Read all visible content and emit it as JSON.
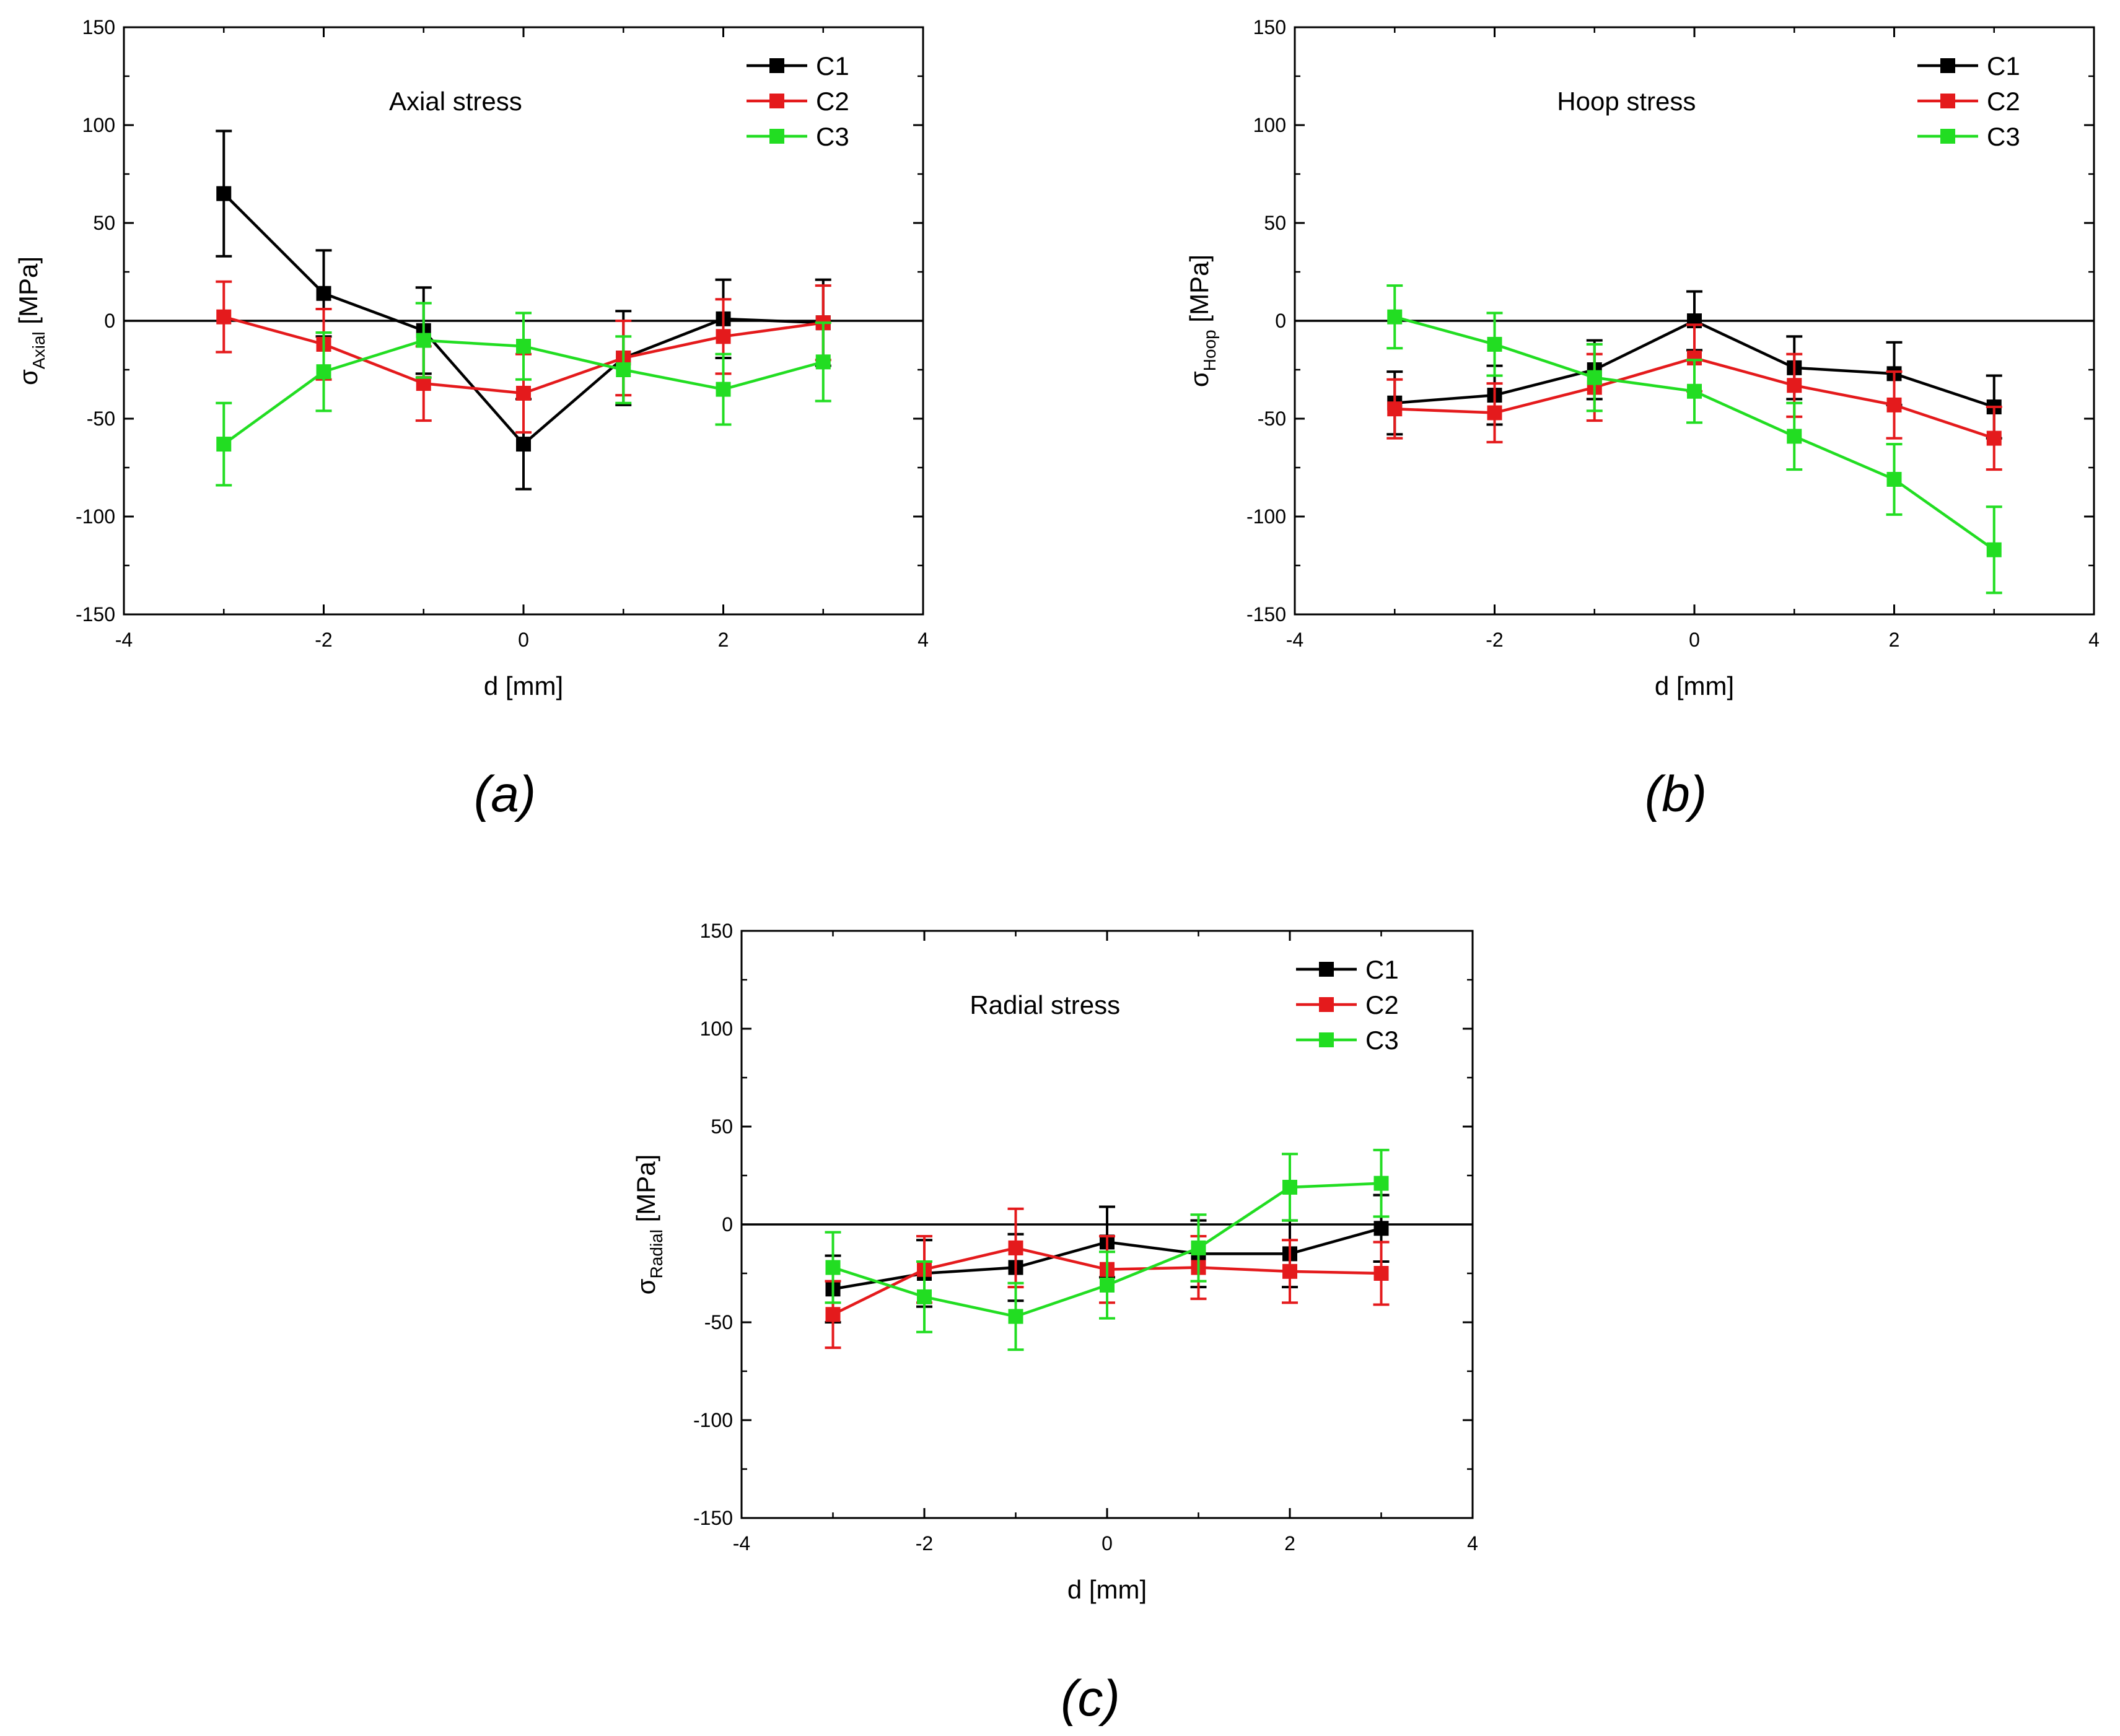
{
  "colors": {
    "C1": "#000000",
    "C2": "#e41a1c",
    "C3": "#22dd22",
    "axis": "#000000"
  },
  "chart_data": [
    {
      "type": "line",
      "panel_label": "(a)",
      "annotation": "Axial stress",
      "xlabel": "d [mm]",
      "ylabel_main": "σ",
      "ylabel_sub": "Axial",
      "ylabel_unit": " [MPa]",
      "xlim": [
        -4,
        4
      ],
      "ylim": [
        -150,
        150
      ],
      "xticks": [
        -4,
        -2,
        0,
        2,
        4
      ],
      "yticks": [
        -150,
        -100,
        -50,
        0,
        50,
        100,
        150
      ],
      "zero_line": true,
      "legend_position": "top-right",
      "x": [
        -3,
        -2,
        -1,
        0,
        1,
        2,
        3
      ],
      "series": [
        {
          "name": "C1",
          "color": "#000000",
          "values": [
            65,
            14,
            -5,
            -63,
            -19,
            1,
            -1
          ],
          "errors": [
            32,
            22,
            22,
            23,
            24,
            20,
            22
          ]
        },
        {
          "name": "C2",
          "color": "#e41a1c",
          "values": [
            2,
            -12,
            -32,
            -37,
            -19,
            -8,
            -1
          ],
          "errors": [
            18,
            18,
            19,
            20,
            19,
            19,
            19
          ]
        },
        {
          "name": "C3",
          "color": "#22dd22",
          "values": [
            -63,
            -26,
            -10,
            -13,
            -25,
            -35,
            -21
          ],
          "errors": [
            21,
            20,
            19,
            17,
            17,
            18,
            20
          ]
        }
      ]
    },
    {
      "type": "line",
      "panel_label": "(b)",
      "annotation": "Hoop stress",
      "xlabel": "d [mm]",
      "ylabel_main": "σ",
      "ylabel_sub": "Hoop",
      "ylabel_unit": " [MPa]",
      "xlim": [
        -4,
        4
      ],
      "ylim": [
        -150,
        150
      ],
      "xticks": [
        -4,
        -2,
        0,
        2,
        4
      ],
      "yticks": [
        -150,
        -100,
        -50,
        0,
        50,
        100,
        150
      ],
      "zero_line": true,
      "legend_position": "top-right",
      "x": [
        -3,
        -2,
        -1,
        0,
        1,
        2,
        3
      ],
      "series": [
        {
          "name": "C1",
          "color": "#000000",
          "values": [
            -42,
            -38,
            -25,
            0,
            -24,
            -27,
            -44
          ],
          "errors": [
            16,
            15,
            15,
            15,
            16,
            16,
            16
          ]
        },
        {
          "name": "C2",
          "color": "#e41a1c",
          "values": [
            -45,
            -47,
            -34,
            -19,
            -33,
            -43,
            -60
          ],
          "errors": [
            15,
            15,
            17,
            17,
            16,
            17,
            16
          ]
        },
        {
          "name": "C3",
          "color": "#22dd22",
          "values": [
            2,
            -12,
            -29,
            -36,
            -59,
            -81,
            -117
          ],
          "errors": [
            16,
            16,
            17,
            16,
            17,
            18,
            22
          ]
        }
      ]
    },
    {
      "type": "line",
      "panel_label": "(c)",
      "annotation": "Radial stress",
      "xlabel": "d [mm]",
      "ylabel_main": "σ",
      "ylabel_sub": "Radial",
      "ylabel_unit": " [MPa]",
      "xlim": [
        -4,
        4
      ],
      "ylim": [
        -150,
        150
      ],
      "xticks": [
        -4,
        -2,
        0,
        2,
        4
      ],
      "yticks": [
        -150,
        -100,
        -50,
        0,
        50,
        100,
        150
      ],
      "zero_line": true,
      "legend_position": "top-right",
      "x": [
        -3,
        -2,
        -1,
        0,
        1,
        2,
        3
      ],
      "series": [
        {
          "name": "C1",
          "color": "#000000",
          "values": [
            -33,
            -25,
            -22,
            -9,
            -15,
            -15,
            -2
          ],
          "errors": [
            17,
            17,
            17,
            18,
            17,
            17,
            17
          ]
        },
        {
          "name": "C2",
          "color": "#e41a1c",
          "values": [
            -46,
            -23,
            -12,
            -23,
            -22,
            -24,
            -25
          ],
          "errors": [
            17,
            17,
            20,
            17,
            16,
            16,
            16
          ]
        },
        {
          "name": "C3",
          "color": "#22dd22",
          "values": [
            -22,
            -37,
            -47,
            -31,
            -12,
            19,
            21
          ],
          "errors": [
            18,
            18,
            17,
            17,
            17,
            17,
            17
          ]
        }
      ]
    }
  ]
}
